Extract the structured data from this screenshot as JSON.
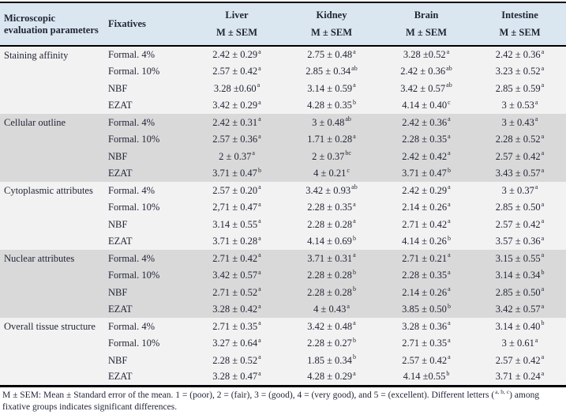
{
  "header": {
    "col_param": "Microscopic evaluation parameters",
    "col_fixatives": "Fixatives",
    "organs": [
      "Liver",
      "Kidney",
      "Brain",
      "Intestine"
    ],
    "subheader": "M ± SEM"
  },
  "groups": [
    {
      "parameter": "Staining affinity",
      "rows": [
        {
          "fixative": "Formal. 4%",
          "cells": [
            [
              "2.42 ± 0.29",
              "a"
            ],
            [
              "2.75 ± 0.48",
              "a"
            ],
            [
              "3.28 ±0.52",
              "a"
            ],
            [
              "2.42 ± 0.36",
              "a"
            ]
          ]
        },
        {
          "fixative": "Formal. 10%",
          "cells": [
            [
              "2.57 ± 0.42",
              "a"
            ],
            [
              "2.85 ± 0.34",
              "ab"
            ],
            [
              "2.42 ± 0.36",
              "ab"
            ],
            [
              "3.23 ± 0.52",
              "a"
            ]
          ]
        },
        {
          "fixative": "NBF",
          "cells": [
            [
              "3.28 ±0.60",
              "a"
            ],
            [
              "3.14 ± 0.59",
              "a"
            ],
            [
              "3.42 ± 0.57",
              "ab"
            ],
            [
              "2.85 ± 0.59",
              "a"
            ]
          ]
        },
        {
          "fixative": "EZAT",
          "cells": [
            [
              "3.42 ± 0.29",
              "a"
            ],
            [
              "4.28 ± 0.35",
              "b"
            ],
            [
              "4.14 ± 0.40",
              "c"
            ],
            [
              "3 ± 0.53",
              "a"
            ]
          ]
        }
      ]
    },
    {
      "parameter": "Cellular outline",
      "rows": [
        {
          "fixative": "Formal. 4%",
          "cells": [
            [
              "2.42 ± 0.31",
              "a"
            ],
            [
              "3 ± 0.48",
              "ab"
            ],
            [
              "2.42 ± 0.36",
              "a"
            ],
            [
              "3 ± 0.43",
              "a"
            ]
          ]
        },
        {
          "fixative": "Formal. 10%",
          "cells": [
            [
              "2.57 ± 0.36",
              "a"
            ],
            [
              "1.71 ± 0.28",
              "a"
            ],
            [
              "2.28 ± 0.35",
              "a"
            ],
            [
              "2.28 ± 0.52",
              "a"
            ]
          ]
        },
        {
          "fixative": "NBF",
          "cells": [
            [
              "2 ± 0.37",
              "a"
            ],
            [
              "2 ± 0.37",
              "bc"
            ],
            [
              "2.42 ± 0.42",
              "a"
            ],
            [
              "2.57 ± 0.42",
              "a"
            ]
          ]
        },
        {
          "fixative": "EZAT",
          "cells": [
            [
              "3.71 ± 0.47",
              "b"
            ],
            [
              "4 ± 0.21",
              "c"
            ],
            [
              "3.71 ± 0.47",
              "b"
            ],
            [
              "3.43 ± 0.57",
              "a"
            ]
          ]
        }
      ]
    },
    {
      "parameter": "Cytoplasmic attributes",
      "rows": [
        {
          "fixative": "Formal. 4%",
          "cells": [
            [
              "2.57 ± 0.20",
              "a"
            ],
            [
              "3.42 ± 0.93",
              "ab"
            ],
            [
              "2.42 ± 0.29",
              "a"
            ],
            [
              "3 ± 0.37",
              "a"
            ]
          ]
        },
        {
          "fixative": "Formal. 10%",
          "cells": [
            [
              "2,71 ± 0.47",
              "a"
            ],
            [
              "2.28 ± 0.35",
              "a"
            ],
            [
              "2.14 ± 0.26",
              "a"
            ],
            [
              "2.85 ± 0.50",
              "a"
            ]
          ]
        },
        {
          "fixative": "NBF",
          "cells": [
            [
              "3.14 ± 0.55",
              "a"
            ],
            [
              "2.28 ± 0.28",
              "a"
            ],
            [
              "2.71 ± 0.42",
              "a"
            ],
            [
              "2.57 ± 0.42",
              "a"
            ]
          ]
        },
        {
          "fixative": "EZAT",
          "cells": [
            [
              "3.71 ± 0.28",
              "a"
            ],
            [
              "4.14 ± 0.69",
              "b"
            ],
            [
              "4.14 ± 0.26",
              "b"
            ],
            [
              "3.57 ± 0.36",
              "a"
            ]
          ]
        }
      ]
    },
    {
      "parameter": "Nuclear attributes",
      "rows": [
        {
          "fixative": "Formal. 4%",
          "cells": [
            [
              "2.71 ± 0.42",
              "a"
            ],
            [
              "3.71 ± 0.31",
              "a"
            ],
            [
              "2.71 ± 0.21",
              "a"
            ],
            [
              "3.15 ± 0.55",
              "a"
            ]
          ]
        },
        {
          "fixative": "Formal. 10%",
          "cells": [
            [
              "3.42 ± 0.57",
              "a"
            ],
            [
              "2.28 ± 0.28",
              "b"
            ],
            [
              "2.28 ± 0.35",
              "a"
            ],
            [
              "3.14 ± 0.34",
              "b"
            ]
          ]
        },
        {
          "fixative": "NBF",
          "cells": [
            [
              "2.71 ± 0.52",
              "a"
            ],
            [
              "2.28 ± 0.28",
              "b"
            ],
            [
              "2.14 ± 0.26",
              "a"
            ],
            [
              "2.85 ± 0.50",
              "a"
            ]
          ]
        },
        {
          "fixative": "EZAT",
          "cells": [
            [
              "3.28 ± 0.42",
              "a"
            ],
            [
              "4 ± 0.43",
              "a"
            ],
            [
              "3.85 ± 0.50",
              "b"
            ],
            [
              "3.42 ± 0.57",
              "a"
            ]
          ]
        }
      ]
    },
    {
      "parameter": "Overall tissue structure",
      "rows": [
        {
          "fixative": "Formal. 4%",
          "cells": [
            [
              "2.71 ± 0.35",
              "a"
            ],
            [
              "3.42 ± 0.48",
              "a"
            ],
            [
              "3.28 ± 0.36",
              "a"
            ],
            [
              "3.14 ± 0.40",
              "b"
            ]
          ]
        },
        {
          "fixative": "Formal. 10%",
          "cells": [
            [
              "3.27 ± 0.64",
              "a"
            ],
            [
              "2.28 ± 0.27",
              "b"
            ],
            [
              "2.71 ± 0.35",
              "a"
            ],
            [
              "3 ± 0.61",
              "a"
            ]
          ]
        },
        {
          "fixative": "NBF",
          "cells": [
            [
              "2.28 ± 0.52",
              "a"
            ],
            [
              "1.85 ± 0.34",
              "b"
            ],
            [
              "2.57 ± 0.42",
              "a"
            ],
            [
              "2.57 ± 0.42",
              "a"
            ]
          ]
        },
        {
          "fixative": "EZAT",
          "cells": [
            [
              "3.28 ± 0.47",
              "a"
            ],
            [
              "4.28 ± 0.29",
              "a"
            ],
            [
              "4.14 ±0.55",
              "b"
            ],
            [
              "3.71 ± 0.24",
              "a"
            ]
          ]
        }
      ]
    }
  ],
  "footnote": {
    "before_sup": "M ± SEM: Mean ± Standard error of the mean. 1 = (poor), 2 = (fair), 3 = (good), 4 = (very good), and 5 = (excellent). Different letters (",
    "sup": "a, b, c",
    "after_sup": ") among fixative groups indicates significant differences."
  },
  "colors": {
    "header_bg": "#dbe7f0",
    "row_light": "#f2f2f2",
    "row_dark": "#d9d9d9",
    "text": "#1f2335",
    "border": "#000000"
  }
}
